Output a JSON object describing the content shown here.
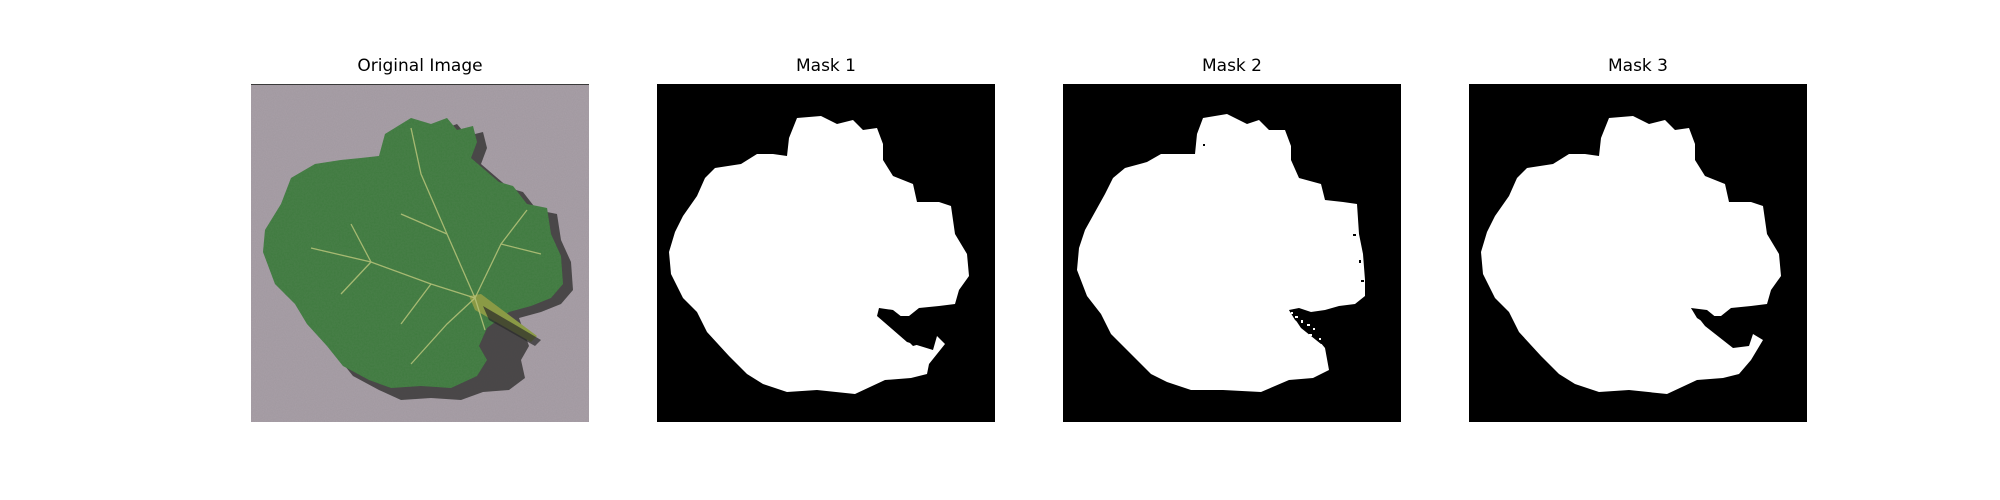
{
  "figure": {
    "panels": [
      {
        "title": "Original Image",
        "kind": "photo",
        "subject": "green-grape-leaf"
      },
      {
        "title": "Mask 1",
        "kind": "mask",
        "variant": "clean"
      },
      {
        "title": "Mask 2",
        "kind": "mask",
        "variant": "speckled-edge"
      },
      {
        "title": "Mask 3",
        "kind": "mask",
        "variant": "clean-notched"
      }
    ]
  },
  "colors": {
    "photo_background": "#a9a0a8",
    "leaf_green": "#3f7a3f",
    "leaf_shadow": "#2e2e2e",
    "vein": "#b8c47a",
    "mask_background": "#000000",
    "mask_foreground": "#ffffff"
  }
}
